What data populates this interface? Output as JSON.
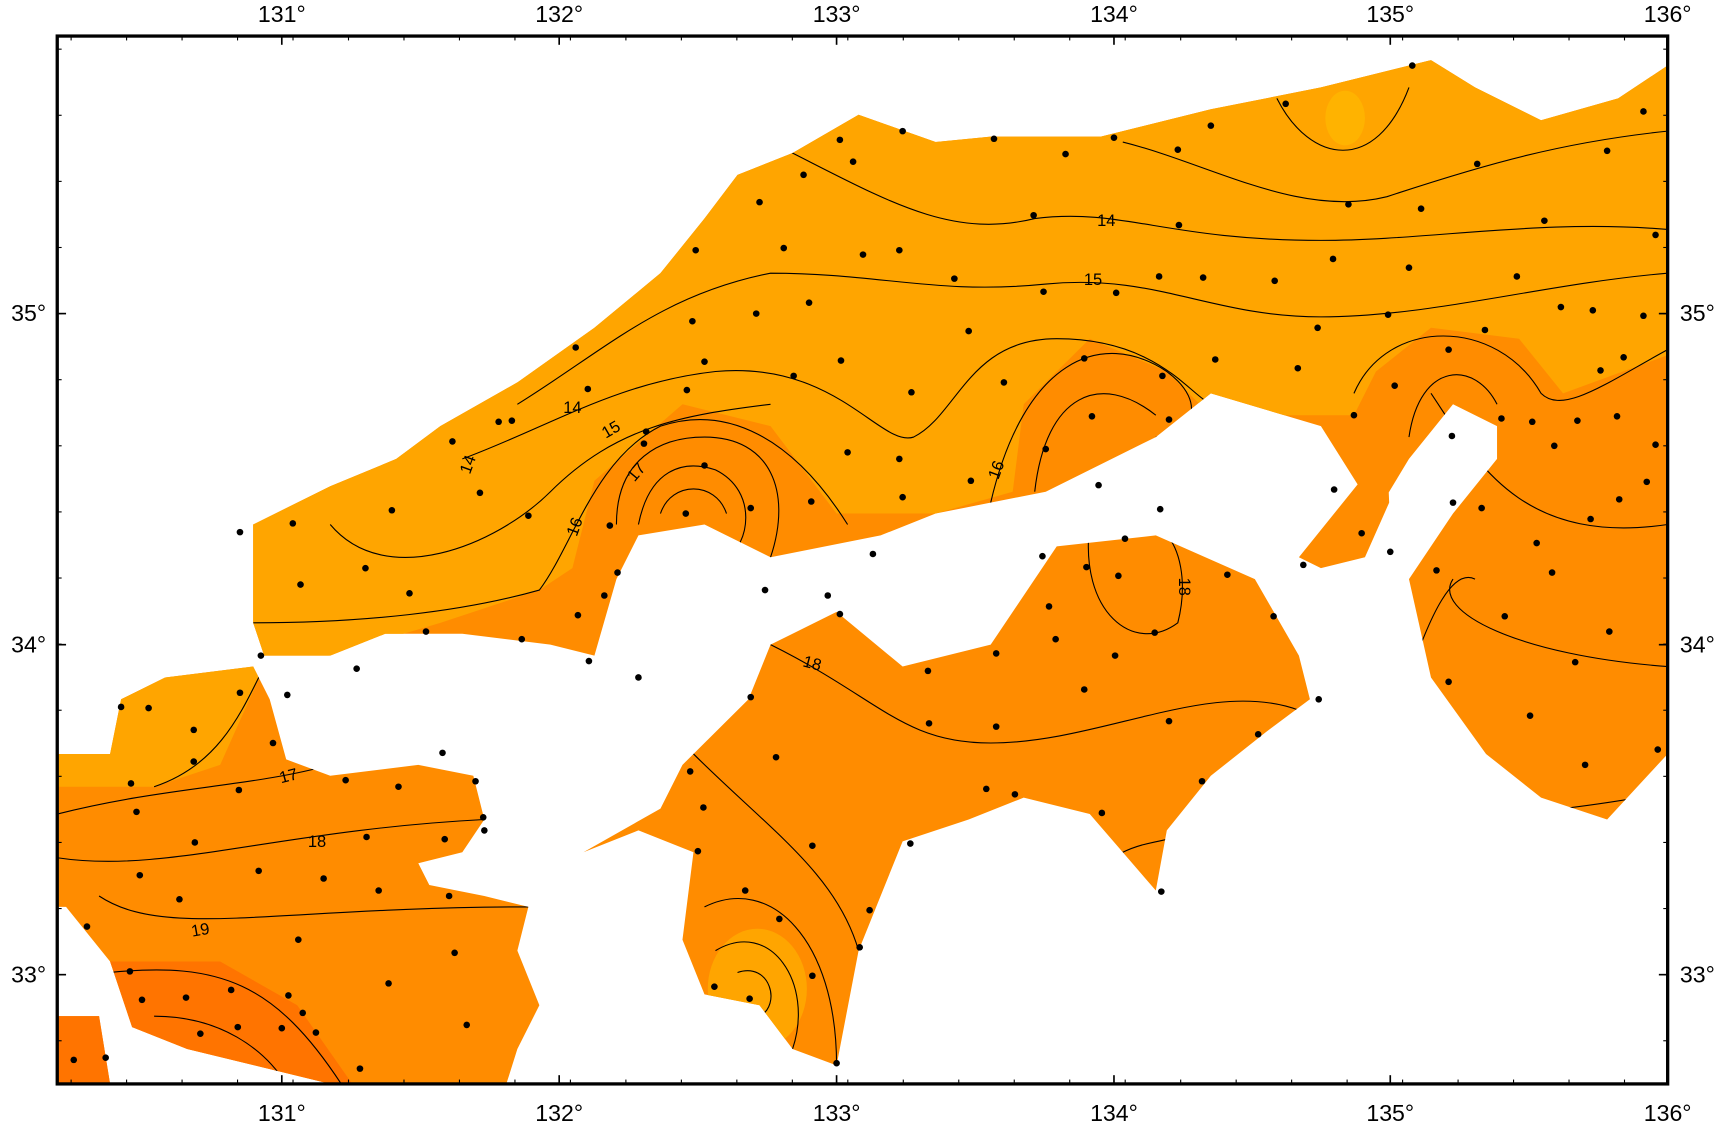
{
  "map": {
    "longitude_labels": [
      "131°",
      "132°",
      "133°",
      "134°",
      "135°",
      "136°"
    ],
    "latitude_labels": [
      "35°",
      "34°",
      "33°"
    ],
    "contour_labels": [
      "14",
      "15",
      "14",
      "15",
      "14",
      "17",
      "16",
      "16",
      "18",
      "18",
      "17",
      "18",
      "19"
    ]
  }
}
